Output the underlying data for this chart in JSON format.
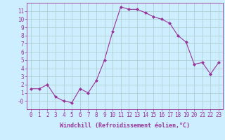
{
  "x": [
    0,
    1,
    2,
    3,
    4,
    5,
    6,
    7,
    8,
    9,
    10,
    11,
    12,
    13,
    14,
    15,
    16,
    17,
    18,
    19,
    20,
    21,
    22,
    23
  ],
  "y": [
    1.5,
    1.5,
    2.0,
    0.5,
    0.0,
    -0.2,
    1.5,
    1.0,
    2.5,
    5.0,
    8.5,
    11.5,
    11.2,
    11.2,
    10.8,
    10.3,
    10.0,
    9.5,
    8.0,
    7.2,
    4.5,
    4.7,
    3.3,
    4.7
  ],
  "line_color": "#993399",
  "marker": "D",
  "marker_size": 2.0,
  "bg_color": "#cceeff",
  "grid_color": "#aacccc",
  "xlabel": "Windchill (Refroidissement éolien,°C)",
  "xlabel_fontsize": 6.0,
  "xtick_labels": [
    "0",
    "1",
    "2",
    "3",
    "4",
    "5",
    "6",
    "7",
    "8",
    "9",
    "10",
    "11",
    "12",
    "13",
    "14",
    "15",
    "16",
    "17",
    "18",
    "19",
    "20",
    "21",
    "22",
    "23"
  ],
  "ylim": [
    -1.0,
    12.0
  ],
  "xlim": [
    -0.5,
    23.5
  ],
  "ytick_labels": [
    "11",
    "10",
    "9",
    "8",
    "7",
    "6",
    "5",
    "4",
    "3",
    "2",
    "1",
    "-0"
  ],
  "ytick_vals": [
    11,
    10,
    9,
    8,
    7,
    6,
    5,
    4,
    3,
    2,
    1,
    0
  ],
  "title_color": "#993399",
  "tick_fontsize": 5.5,
  "linewidth": 0.8
}
